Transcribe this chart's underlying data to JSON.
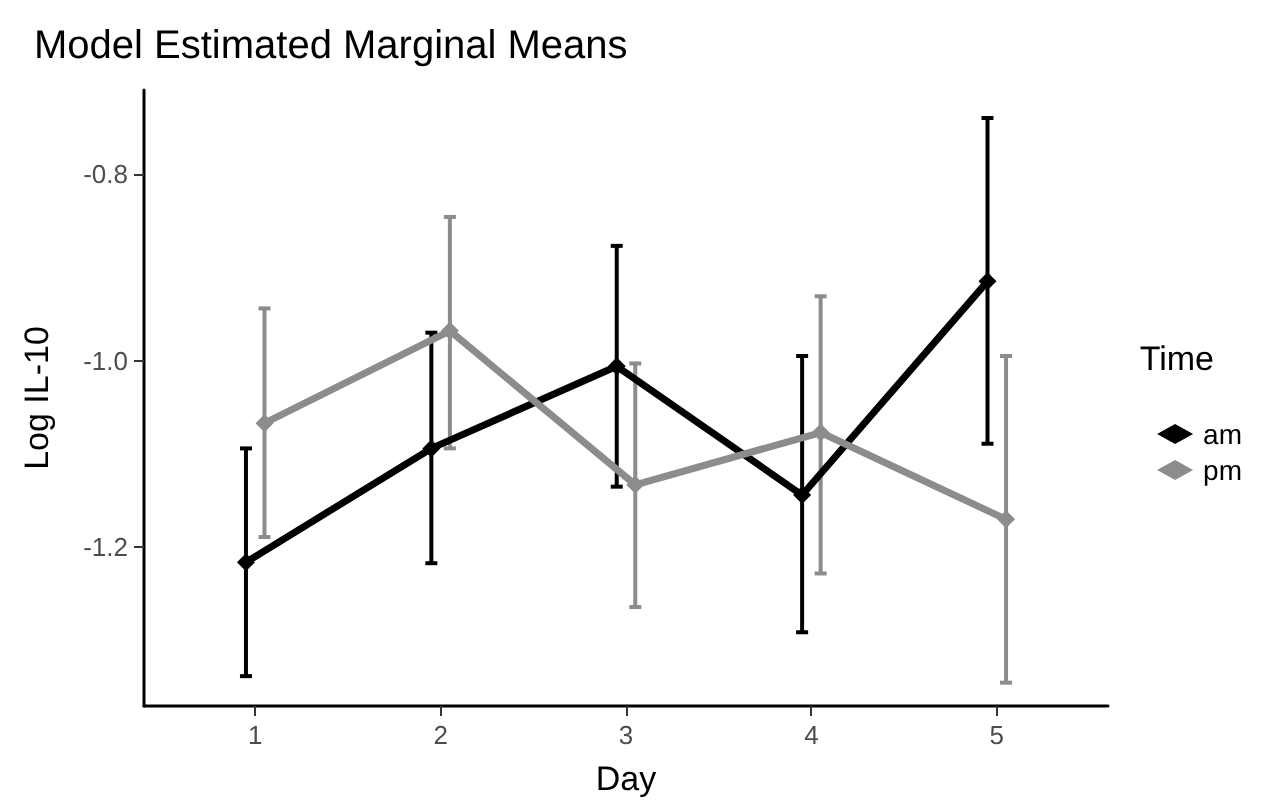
{
  "chart_data": {
    "type": "line",
    "title": "Model Estimated Marginal Means",
    "xlabel": "Day",
    "ylabel": "Log IL-10",
    "legend_title": "Time",
    "legend": "right",
    "grid": false,
    "marker": "diamond",
    "line_style": "solid",
    "xlim": [
      0.4,
      5.6
    ],
    "xticks": [
      1,
      2,
      3,
      4,
      5
    ],
    "ylim": [
      -1.37,
      -0.71
    ],
    "yticks": [
      {
        "value": -1.2,
        "label": "-1.2"
      },
      {
        "value": -1,
        "label": "-1.0"
      },
      {
        "value": -0.8,
        "label": "-0.8"
      }
    ],
    "series": [
      {
        "name": "am",
        "color": "#000000",
        "x": [
          0.95,
          1.95,
          2.95,
          3.95,
          4.95
        ],
        "values": [
          -1.216,
          -1.094,
          -1.006,
          -1.144,
          -0.915
        ],
        "errors": [
          [
            -1.338,
            -1.094
          ],
          [
            -1.217,
            -0.97
          ],
          [
            -1.135,
            -0.877
          ],
          [
            -1.291,
            -0.995
          ],
          [
            -1.089,
            -0.74
          ]
        ]
      },
      {
        "name": "pm",
        "color": "#8c8c8c",
        "x": [
          1.05,
          2.05,
          3.05,
          4.05,
          5.05
        ],
        "values": [
          -1.067,
          -0.968,
          -1.133,
          -1.077,
          -1.17
        ],
        "errors": [
          [
            -1.189,
            -0.944
          ],
          [
            -1.094,
            -0.846
          ],
          [
            -1.264,
            -1.003
          ],
          [
            -1.228,
            -0.931
          ],
          [
            -1.345,
            -0.995
          ]
        ]
      }
    ]
  }
}
